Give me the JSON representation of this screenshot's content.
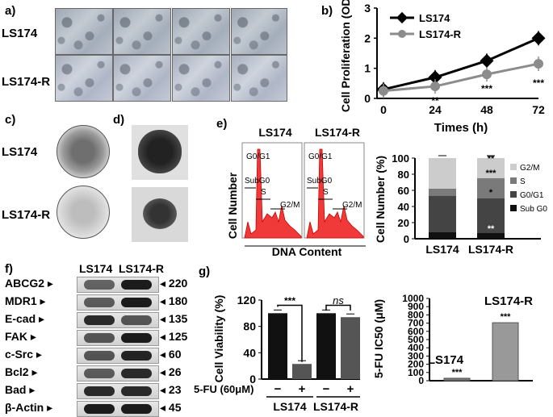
{
  "panels": {
    "a": {
      "label": "a)",
      "rows": [
        "LS174",
        "LS174-R"
      ]
    },
    "b": {
      "label": "b)"
    },
    "c": {
      "label": "c)",
      "rows": [
        "LS174",
        "LS174-R"
      ]
    },
    "d": {
      "label": "d)"
    },
    "e": {
      "label": "e)",
      "hist_titles": [
        "LS174",
        "LS174-R"
      ],
      "hist_labels": [
        "G0/G1",
        "SubG0",
        "S",
        "G2/M"
      ],
      "ylabel": "Cell Number",
      "xlabel": "DNA Content"
    },
    "f": {
      "label": "f)",
      "cols": [
        "LS174",
        "LS174-R"
      ],
      "rows": [
        {
          "name": "ABCG2",
          "kda": "220",
          "b1": 0.5,
          "b2": 1.0
        },
        {
          "name": "MDR1",
          "kda": "180",
          "b1": 0.55,
          "b2": 1.0
        },
        {
          "name": "E-cad",
          "kda": "135",
          "b1": 0.9,
          "b2": 0.6
        },
        {
          "name": "FAK",
          "kda": "125",
          "b1": 0.6,
          "b2": 1.0
        },
        {
          "name": "c-Src",
          "kda": "60",
          "b1": 0.6,
          "b2": 0.95
        },
        {
          "name": "Bcl2",
          "kda": "26",
          "b1": 0.55,
          "b2": 0.9
        },
        {
          "name": "Bad",
          "kda": "23",
          "b1": 0.9,
          "b2": 0.9
        },
        {
          "name": "β-Actin",
          "kda": "45",
          "b1": 1.0,
          "b2": 1.0
        }
      ]
    },
    "g": {
      "label": "g)",
      "treatment_label": "5-FU (60μM)",
      "signs": [
        "−",
        "+",
        "−",
        "+"
      ]
    }
  },
  "chart_data": [
    {
      "type": "line",
      "ylabel": "Cell Proliferation (OD)",
      "xlabel": "Times (h)",
      "x": [
        0,
        24,
        48,
        72
      ],
      "xlim": [
        0,
        72
      ],
      "ylim": [
        0,
        3
      ],
      "yticks": [
        0,
        1,
        2,
        3
      ],
      "series": [
        {
          "name": "LS174",
          "values": [
            0.3,
            0.7,
            1.25,
            2.0
          ],
          "color": "#000000"
        },
        {
          "name": "LS174-R",
          "values": [
            0.25,
            0.4,
            0.8,
            1.15
          ],
          "color": "#8c8c8c"
        }
      ],
      "annotations": [
        "**",
        "***",
        "***"
      ],
      "legend": "top-left"
    },
    {
      "type": "bar",
      "stacked": true,
      "ylabel": "Cell Number (%)",
      "categories": [
        "LS174",
        "LS174-R"
      ],
      "ylim": [
        0,
        100
      ],
      "yticks": [
        0,
        20,
        40,
        60,
        80,
        100
      ],
      "series": [
        {
          "name": "Sub G0",
          "values": [
            8,
            7
          ],
          "color": "#111111"
        },
        {
          "name": "G0/G1",
          "values": [
            45,
            43
          ],
          "color": "#444444"
        },
        {
          "name": "S",
          "values": [
            9,
            25
          ],
          "color": "#7a7a7a"
        },
        {
          "name": "G2/M",
          "values": [
            38,
            25
          ],
          "color": "#cccccc"
        }
      ],
      "annotations": [
        "**",
        "***",
        "*",
        "**"
      ],
      "legend": "right"
    },
    {
      "type": "bar",
      "ylabel": "Cell Viability (%)",
      "categories": [
        "−",
        "+",
        "−",
        "+"
      ],
      "groups": [
        "LS174",
        "LS174-R"
      ],
      "values": [
        100,
        23,
        100,
        94
      ],
      "ylim": [
        0,
        120
      ],
      "yticks": [
        0,
        40,
        80,
        120
      ],
      "annotations": [
        "***",
        "ns"
      ]
    },
    {
      "type": "bar",
      "ylabel": "5-FU IC50 (μM)",
      "categories": [
        "LS174",
        "LS174-R"
      ],
      "values": [
        30,
        705
      ],
      "ylim": [
        0,
        1000
      ],
      "yticks": [
        0,
        100,
        200,
        300,
        400,
        500,
        600,
        700,
        800,
        900,
        1000
      ],
      "annotations": [
        "***",
        "***"
      ]
    }
  ]
}
